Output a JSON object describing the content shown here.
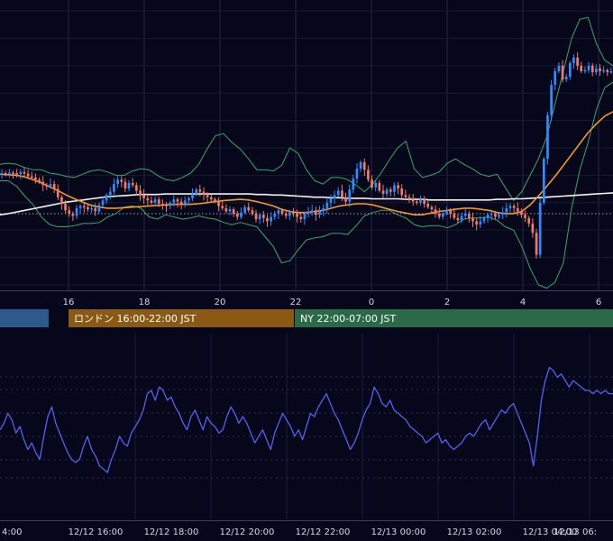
{
  "chart_data": [
    {
      "type": "candlestick",
      "title": "",
      "x_ticks": [
        "16",
        "18",
        "20",
        "22",
        "0",
        "2",
        "4",
        "6"
      ],
      "grid": true,
      "reference_line": "dotted horizontal",
      "colors": {
        "up": "#2e8cff",
        "down": "#f07a6a",
        "bollinger": "#3aa66a",
        "ma_short": "#f39a2b",
        "ma_long": "#f2f2f2",
        "background": "#06071a",
        "grid": "#262a45"
      },
      "close": [
        1.04,
        1.03,
        1.05,
        1.04,
        1.02,
        1.06,
        1.03,
        0.98,
        0.96,
        0.92,
        0.88,
        0.82,
        0.8,
        0.84,
        0.75,
        0.6,
        0.48,
        0.36,
        0.3,
        0.26,
        0.4,
        0.44,
        0.42,
        0.38,
        0.4,
        0.34,
        0.46,
        0.54,
        0.64,
        0.7,
        0.84,
        0.92,
        0.88,
        0.76,
        0.86,
        0.82,
        0.72,
        0.64,
        0.58,
        0.54,
        0.5,
        0.56,
        0.48,
        0.46,
        0.44,
        0.5,
        0.56,
        0.52,
        0.48,
        0.54,
        0.58,
        0.66,
        0.74,
        0.7,
        0.64,
        0.6,
        0.56,
        0.52,
        0.44,
        0.4,
        0.34,
        0.38,
        0.3,
        0.24,
        0.32,
        0.42,
        0.36,
        0.3,
        0.2,
        0.28,
        0.22,
        0.16,
        0.24,
        0.3,
        0.36,
        0.3,
        0.26,
        0.34,
        0.3,
        0.24,
        0.2,
        0.3,
        0.34,
        0.36,
        0.28,
        0.34,
        0.4,
        0.5,
        0.58,
        0.64,
        0.72,
        0.6,
        0.52,
        0.74,
        0.94,
        1.12,
        1.24,
        1.1,
        0.92,
        0.78,
        0.86,
        0.72,
        0.66,
        0.74,
        0.7,
        0.82,
        0.76,
        0.64,
        0.6,
        0.56,
        0.52,
        0.5,
        0.56,
        0.48,
        0.42,
        0.38,
        0.3,
        0.24,
        0.3,
        0.36,
        0.3,
        0.22,
        0.18,
        0.26,
        0.3,
        0.22,
        0.16,
        0.1,
        0.16,
        0.22,
        0.28,
        0.3,
        0.24,
        0.28,
        0.32,
        0.4,
        0.44,
        0.4,
        0.34,
        0.28,
        0.22,
        0.12,
        -0.05,
        -0.45,
        0.5,
        1.3,
        2.1,
        2.65,
        2.9,
        3.0,
        2.75,
        2.8,
        3.05,
        3.15,
        3.0,
        2.9,
        2.92,
        3.0,
        2.88,
        2.95,
        2.9,
        2.92,
        2.88,
        2.9
      ],
      "bollinger_upper": [
        1.2,
        1.22,
        1.2,
        1.14,
        1.1,
        1.1,
        1.04,
        1.02,
        0.98,
        0.96,
        1.02,
        1.08,
        1.1,
        1.06,
        1.0,
        1.0,
        1.08,
        1.12,
        1.1,
        1.0,
        0.92,
        0.9,
        0.96,
        1.04,
        1.2,
        1.48,
        1.72,
        1.76,
        1.6,
        1.48,
        1.3,
        1.1,
        1.1,
        1.08,
        1.18,
        1.5,
        1.4,
        1.1,
        0.9,
        0.84,
        0.96,
        0.96,
        0.92,
        0.82,
        0.7,
        0.84,
        1.04,
        1.28,
        1.5,
        1.62,
        1.12,
        0.96,
        1.0,
        1.06,
        1.22,
        1.3,
        1.2,
        1.12,
        1.02,
        0.98,
        1.02,
        0.78,
        0.54,
        0.7,
        1.0,
        1.3,
        1.7,
        2.3,
        2.9,
        3.5,
        3.85,
        3.88,
        3.4,
        3.1,
        3.0
      ],
      "bollinger_lower": [
        0.9,
        0.9,
        0.8,
        0.62,
        0.46,
        0.24,
        0.1,
        0.06,
        0.06,
        0.08,
        0.12,
        0.12,
        0.14,
        0.24,
        0.3,
        0.42,
        0.44,
        0.4,
        0.24,
        0.2,
        0.28,
        0.24,
        0.2,
        0.22,
        0.26,
        0.22,
        0.2,
        0.14,
        0.1,
        0.14,
        0.1,
        0.06,
        -0.12,
        -0.3,
        -0.6,
        -0.56,
        -0.36,
        -0.18,
        -0.14,
        -0.12,
        -0.06,
        -0.06,
        -0.08,
        0.08,
        0.26,
        0.32,
        0.36,
        0.36,
        0.28,
        0.22,
        0.1,
        0.06,
        0.08,
        0.08,
        0.04,
        0.1,
        0.2,
        0.22,
        0.22,
        0.24,
        0.18,
        0.06,
        0.0,
        -0.3,
        -0.7,
        -1.0,
        -1.06,
        -0.95,
        -0.6,
        0.4,
        1.1,
        1.6,
        2.2,
        2.6,
        2.7
      ],
      "ma_short": [
        1.02,
        1.01,
        1.0,
        0.97,
        0.92,
        0.86,
        0.79,
        0.72,
        0.64,
        0.57,
        0.51,
        0.45,
        0.42,
        0.4,
        0.4,
        0.41,
        0.42,
        0.43,
        0.44,
        0.45,
        0.46,
        0.47,
        0.47,
        0.47,
        0.48,
        0.5,
        0.52,
        0.54,
        0.55,
        0.56,
        0.55,
        0.52,
        0.48,
        0.44,
        0.38,
        0.34,
        0.32,
        0.32,
        0.34,
        0.36,
        0.4,
        0.44,
        0.46,
        0.48,
        0.48,
        0.46,
        0.42,
        0.38,
        0.34,
        0.31,
        0.28,
        0.28,
        0.31,
        0.34,
        0.36,
        0.38,
        0.4,
        0.4,
        0.38,
        0.36,
        0.32,
        0.3,
        0.3,
        0.34,
        0.46,
        0.62,
        0.8,
        0.98,
        1.18,
        1.38,
        1.58,
        1.78,
        1.94,
        2.08,
        2.16
      ],
      "ma_long": [
        0.28,
        0.3,
        0.33,
        0.36,
        0.39,
        0.42,
        0.45,
        0.48,
        0.51,
        0.53,
        0.55,
        0.57,
        0.59,
        0.61,
        0.62,
        0.63,
        0.64,
        0.65,
        0.65,
        0.65,
        0.66,
        0.66,
        0.66,
        0.66,
        0.66,
        0.66,
        0.66,
        0.66,
        0.66,
        0.66,
        0.66,
        0.65,
        0.65,
        0.64,
        0.64,
        0.63,
        0.62,
        0.61,
        0.6,
        0.6,
        0.59,
        0.59,
        0.58,
        0.58,
        0.58,
        0.57,
        0.57,
        0.57,
        0.57,
        0.56,
        0.56,
        0.56,
        0.55,
        0.55,
        0.55,
        0.55,
        0.55,
        0.55,
        0.55,
        0.55,
        0.56,
        0.56,
        0.57,
        0.57,
        0.58,
        0.59,
        0.6,
        0.61,
        0.62,
        0.63,
        0.64,
        0.65,
        0.66,
        0.67,
        0.68
      ]
    },
    {
      "type": "line",
      "x_ticks": [
        "4:00",
        "12/12 16:00",
        "12/12 18:00",
        "12/12 20:00",
        "12/12 22:00",
        "12/13 00:00",
        "12/13 02:00",
        "12/13 04:00",
        "12/13 06:"
      ],
      "grid": true,
      "colors": {
        "line": "#5560f0"
      },
      "values": [
        48,
        52,
        58,
        54,
        46,
        50,
        42,
        36,
        40,
        34,
        30,
        44,
        56,
        62,
        52,
        46,
        40,
        34,
        30,
        28,
        30,
        38,
        44,
        36,
        32,
        26,
        24,
        22,
        30,
        36,
        44,
        40,
        38,
        46,
        50,
        54,
        60,
        70,
        72,
        66,
        74,
        72,
        66,
        68,
        62,
        58,
        52,
        48,
        56,
        60,
        54,
        48,
        56,
        52,
        50,
        46,
        48,
        56,
        62,
        58,
        52,
        56,
        52,
        46,
        40,
        44,
        48,
        42,
        36,
        46,
        52,
        58,
        54,
        50,
        44,
        48,
        42,
        50,
        58,
        56,
        62,
        66,
        70,
        64,
        58,
        54,
        48,
        42,
        36,
        40,
        46,
        54,
        60,
        64,
        74,
        70,
        64,
        62,
        66,
        60,
        58,
        56,
        54,
        50,
        48,
        46,
        44,
        40,
        42,
        44,
        46,
        40,
        42,
        38,
        36,
        38,
        40,
        44,
        46,
        44,
        48,
        52,
        54,
        48,
        52,
        56,
        60,
        58,
        62,
        64,
        58,
        52,
        46,
        40,
        26,
        44,
        66,
        78,
        86,
        84,
        80,
        82,
        78,
        74,
        78,
        76,
        74,
        72,
        72,
        70,
        72,
        70,
        72,
        70,
        70
      ]
    }
  ],
  "sessions": [
    {
      "label": "",
      "color": "#2d5a8c"
    },
    {
      "label": "ロンドン 16:00-22:00 JST",
      "color": "#8a5a14"
    },
    {
      "label": "NY 22:00-07:00 JST",
      "color": "#2a6a46"
    }
  ]
}
